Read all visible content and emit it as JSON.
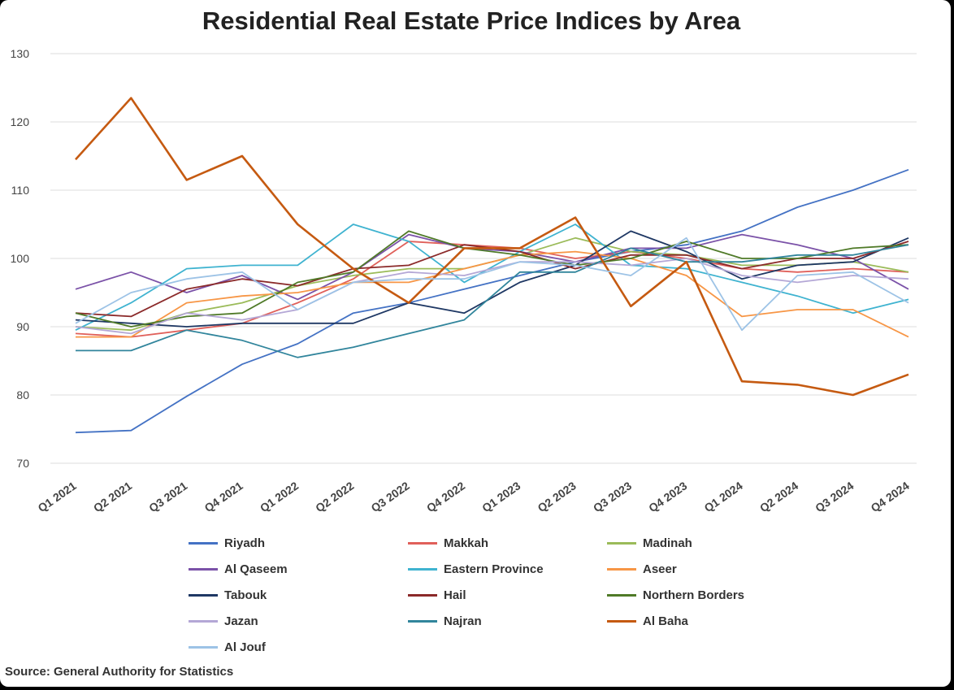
{
  "chart_data": {
    "type": "line",
    "title": "Residential Real Estate Price Indices by Area",
    "xlabel": "",
    "ylabel": "",
    "ylim": [
      70,
      130
    ],
    "yticks": [
      70,
      80,
      90,
      100,
      110,
      120,
      130
    ],
    "grid": true,
    "legend_position": "bottom",
    "categories": [
      "Q1 2021",
      "Q2 2021",
      "Q3 2021",
      "Q4 2021",
      "Q1 2022",
      "Q2 2022",
      "Q3 2022",
      "Q4 2022",
      "Q1 2023",
      "Q2 2023",
      "Q3 2023",
      "Q4 2023",
      "Q1 2024",
      "Q2 2024",
      "Q3 2024",
      "Q4 2024"
    ],
    "series": [
      {
        "name": "Riyadh",
        "color": "#4472c4",
        "values": [
          74.5,
          74.8,
          79.8,
          84.5,
          87.5,
          92.0,
          93.5,
          95.5,
          97.5,
          99.5,
          101.0,
          102.0,
          104.0,
          107.5,
          110.0,
          113.0
        ]
      },
      {
        "name": "Makkah",
        "color": "#e0605a",
        "values": [
          89.0,
          88.5,
          89.5,
          90.5,
          93.5,
          97.0,
          102.5,
          102.0,
          101.5,
          100.0,
          101.0,
          100.0,
          98.5,
          98.0,
          98.5,
          98.0
        ]
      },
      {
        "name": "Madinah",
        "color": "#9bbb59",
        "values": [
          90.0,
          89.5,
          92.0,
          93.5,
          96.0,
          97.5,
          98.5,
          98.5,
          100.5,
          103.0,
          101.0,
          100.5,
          99.0,
          99.0,
          99.5,
          98.0
        ]
      },
      {
        "name": "Al Qaseem",
        "color": "#7b52a8",
        "values": [
          95.5,
          98.0,
          95.0,
          97.5,
          94.0,
          98.0,
          103.5,
          101.5,
          101.0,
          99.5,
          101.5,
          101.5,
          103.5,
          102.0,
          100.0,
          95.5
        ]
      },
      {
        "name": "Eastern Province",
        "color": "#3fb3d0",
        "values": [
          89.5,
          93.5,
          98.5,
          99.0,
          99.0,
          105.0,
          102.5,
          96.5,
          101.0,
          105.0,
          99.0,
          98.5,
          96.5,
          94.5,
          92.0,
          94.0
        ]
      },
      {
        "name": "Aseer",
        "color": "#f79646",
        "values": [
          88.5,
          88.5,
          93.5,
          94.5,
          95.0,
          96.5,
          96.5,
          98.5,
          100.5,
          101.0,
          100.0,
          97.5,
          91.5,
          92.5,
          92.5,
          88.5
        ]
      },
      {
        "name": "Tabouk",
        "color": "#1f3864",
        "values": [
          91.0,
          90.5,
          90.0,
          90.5,
          90.5,
          90.5,
          93.5,
          92.0,
          96.5,
          99.0,
          104.0,
          101.0,
          97.0,
          99.0,
          99.5,
          103.0
        ]
      },
      {
        "name": "Hail",
        "color": "#8b2a2a",
        "values": [
          92.0,
          91.5,
          95.5,
          97.0,
          96.0,
          98.5,
          99.0,
          102.0,
          101.0,
          98.5,
          100.5,
          100.5,
          98.5,
          100.0,
          100.0,
          102.5
        ]
      },
      {
        "name": "Northern Borders",
        "color": "#4f7a28",
        "values": [
          92.0,
          90.0,
          91.5,
          92.0,
          96.5,
          98.0,
          104.0,
          101.5,
          100.5,
          99.0,
          100.0,
          102.5,
          100.0,
          100.0,
          101.5,
          102.0
        ]
      },
      {
        "name": "Jazan",
        "color": "#b4a7d6",
        "values": [
          90.0,
          89.0,
          92.0,
          91.0,
          92.5,
          96.5,
          98.0,
          97.5,
          99.5,
          99.5,
          99.0,
          100.0,
          97.5,
          96.5,
          97.5,
          97.0
        ]
      },
      {
        "name": "Najran",
        "color": "#31859c",
        "values": [
          86.5,
          86.5,
          89.5,
          88.0,
          85.5,
          87.0,
          89.0,
          91.0,
          98.0,
          98.0,
          101.5,
          99.5,
          99.5,
          100.5,
          100.5,
          102.0
        ]
      },
      {
        "name": "Al Baha",
        "color": "#c55a11",
        "values": [
          114.5,
          123.5,
          111.5,
          115.0,
          105.0,
          98.5,
          93.5,
          101.5,
          101.5,
          106.0,
          93.0,
          99.5,
          82.0,
          81.5,
          80.0,
          83.0
        ]
      },
      {
        "name": "Al Jouf",
        "color": "#9dc3e6",
        "values": [
          90.5,
          95.0,
          97.0,
          98.0,
          92.5,
          96.5,
          97.0,
          97.0,
          99.5,
          99.0,
          97.5,
          103.0,
          89.5,
          97.5,
          98.0,
          93.5
        ]
      }
    ]
  },
  "source": "Source: General Authority for Statistics"
}
